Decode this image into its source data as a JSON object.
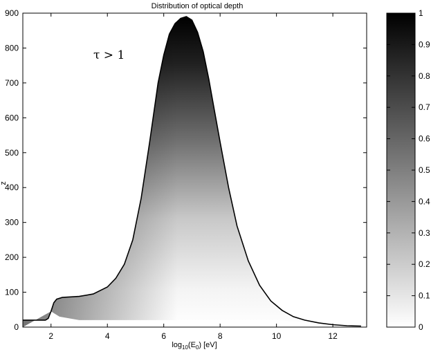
{
  "chart_data": {
    "type": "heatmap",
    "title": "Distribution of optical depth",
    "xlabel": "log10(E0) [eV]",
    "xlabel_parts": {
      "base": "log",
      "sub1": "10",
      "mid": "(E",
      "sub2": "0",
      "end": ") [eV]"
    },
    "ylabel": "z",
    "xlim": [
      1,
      13.2
    ],
    "ylim": [
      0,
      900
    ],
    "xticks": [
      2,
      4,
      6,
      8,
      10,
      12
    ],
    "yticks": [
      0,
      100,
      200,
      300,
      400,
      500,
      600,
      700,
      800,
      900
    ],
    "annotation": "τ > 1",
    "colorbar": {
      "min": 0,
      "max": 1,
      "ticks": [
        0,
        0.1,
        0.2,
        0.3,
        0.4,
        0.5,
        0.6,
        0.7,
        0.8,
        0.9,
        1
      ],
      "colormap": "gray (white = 0, black = 1)"
    },
    "boundary": {
      "description": "Upper edge of tau > 1 region (z vs log10 E0)",
      "x": [
        1.0,
        1.8,
        1.9,
        2.0,
        2.1,
        2.2,
        2.4,
        3.0,
        3.5,
        4.0,
        4.3,
        4.6,
        4.9,
        5.2,
        5.5,
        5.8,
        6.0,
        6.2,
        6.4,
        6.6,
        6.8,
        7.0,
        7.2,
        7.4,
        7.6,
        7.8,
        8.0,
        8.3,
        8.6,
        9.0,
        9.4,
        9.8,
        10.2,
        10.6,
        11.0,
        11.5,
        12.0,
        12.5,
        13.0
      ],
      "z": [
        20,
        20,
        25,
        45,
        70,
        80,
        85,
        88,
        95,
        115,
        140,
        180,
        250,
        370,
        530,
        700,
        780,
        840,
        870,
        885,
        890,
        880,
        845,
        790,
        710,
        620,
        530,
        400,
        290,
        190,
        120,
        75,
        48,
        30,
        20,
        12,
        7,
        4,
        3
      ]
    },
    "floor": {
      "description": "Lower white edge of the dark band",
      "x": [
        2.0,
        2.3,
        3.0,
        4.0,
        5.0,
        6.0,
        7.0,
        8.0,
        9.0,
        10.0
      ],
      "z": [
        45,
        30,
        20,
        20,
        20,
        20,
        20,
        20,
        20,
        20
      ]
    }
  }
}
